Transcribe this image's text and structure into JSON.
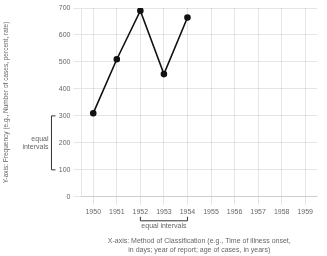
{
  "chart_data": {
    "type": "line",
    "xlabel": [
      "X-axis: Method of Classification (e.g., Time of illness onset,",
      "in days; year of report; age of cases, in years)"
    ],
    "ylabel": "Y-axis: Frequency (e.g., Number of cases, percent, rate)",
    "x": [
      1950,
      1951,
      1952,
      1953,
      1954
    ],
    "values": [
      310,
      510,
      690,
      455,
      665
    ],
    "color": "#111111",
    "marker": "circle",
    "xlim": [
      1949.5,
      1959.5
    ],
    "xticks": [
      1950,
      1951,
      1952,
      1953,
      1954,
      1955,
      1956,
      1957,
      1958,
      1959
    ],
    "ylim": [
      0,
      700
    ],
    "yticks": [
      0,
      100,
      200,
      300,
      400,
      500,
      600,
      700
    ],
    "grid": true,
    "annotations": [
      {
        "text": "equal intervals",
        "x": [
          1952,
          1954
        ]
      },
      {
        "text": [
          "equal",
          "intervals"
        ],
        "y": [
          100,
          300
        ]
      }
    ]
  }
}
